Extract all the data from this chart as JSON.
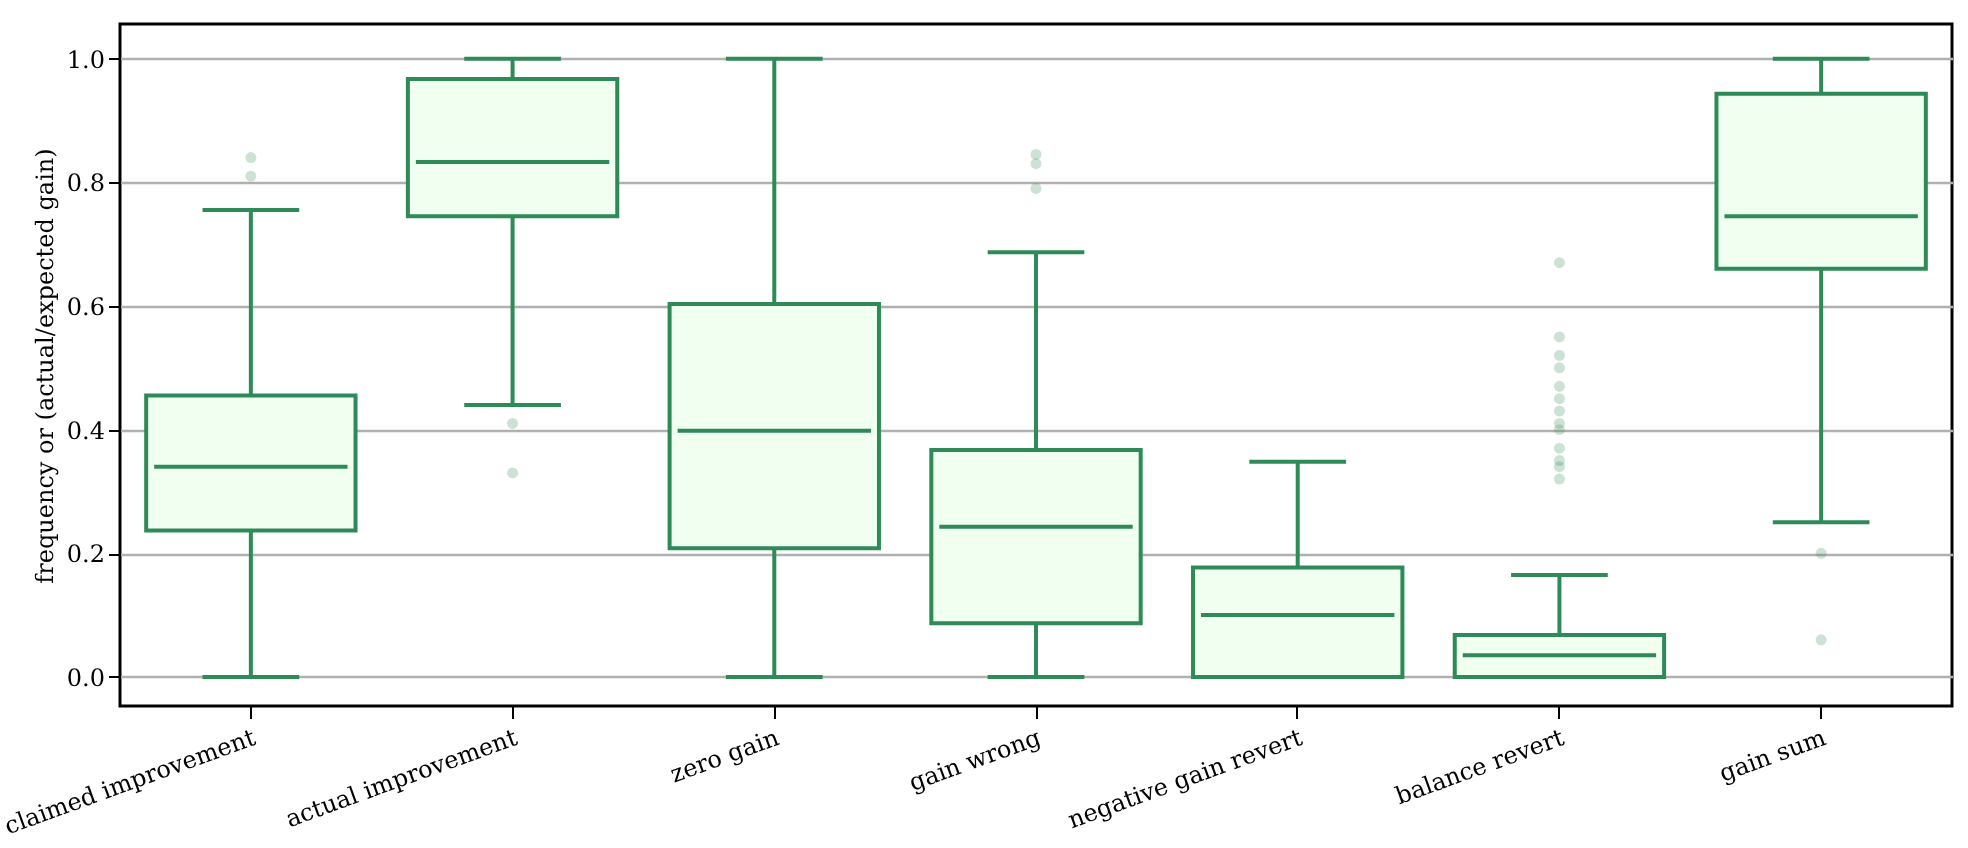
{
  "chart_data": {
    "type": "box",
    "ylabel": "frequency or (actual/expected gain)",
    "categories": [
      "claimed improvement",
      "actual improvement",
      "zero gain",
      "gain wrong",
      "negative gain revert",
      "balance revert",
      "gain sum"
    ],
    "color": "#2e8b57",
    "boxes": [
      {
        "low": 0.0,
        "q1": 0.237,
        "median": 0.34,
        "q3": 0.455,
        "high": 0.755,
        "outliers": [
          0.84,
          0.81
        ]
      },
      {
        "low": 0.44,
        "q1": 0.745,
        "median": 0.833,
        "q3": 0.967,
        "high": 1.0,
        "outliers": [
          0.41,
          0.33
        ]
      },
      {
        "low": 0.0,
        "q1": 0.208,
        "median": 0.398,
        "q3": 0.603,
        "high": 1.0
      },
      {
        "low": 0.0,
        "q1": 0.087,
        "median": 0.243,
        "q3": 0.367,
        "high": 0.687,
        "outliers": [
          0.845,
          0.83,
          0.79
        ]
      },
      {
        "low": 0.0,
        "q1": 0.0,
        "median": 0.1,
        "q3": 0.177,
        "high": 0.348
      },
      {
        "low": 0.0,
        "q1": 0.0,
        "median": 0.035,
        "q3": 0.068,
        "high": 0.165,
        "outliers": [
          0.67,
          0.55,
          0.52,
          0.5,
          0.47,
          0.45,
          0.43,
          0.41,
          0.4,
          0.37,
          0.35,
          0.34,
          0.32
        ]
      },
      {
        "low": 0.25,
        "q1": 0.66,
        "median": 0.745,
        "q3": 0.943,
        "high": 1.0,
        "outliers": [
          0.2,
          0.06
        ]
      }
    ],
    "ylim": [
      -0.047,
      1.056
    ],
    "yticks": [
      {
        "value": 0,
        "label": "0.0"
      },
      {
        "value": 0.2,
        "label": "0.2"
      },
      {
        "value": 0.4,
        "label": "0.4"
      },
      {
        "value": 0.6,
        "label": "0.6"
      },
      {
        "value": 0.8,
        "label": "0.8"
      },
      {
        "value": 1,
        "label": "1.0"
      }
    ],
    "grid": "y"
  }
}
